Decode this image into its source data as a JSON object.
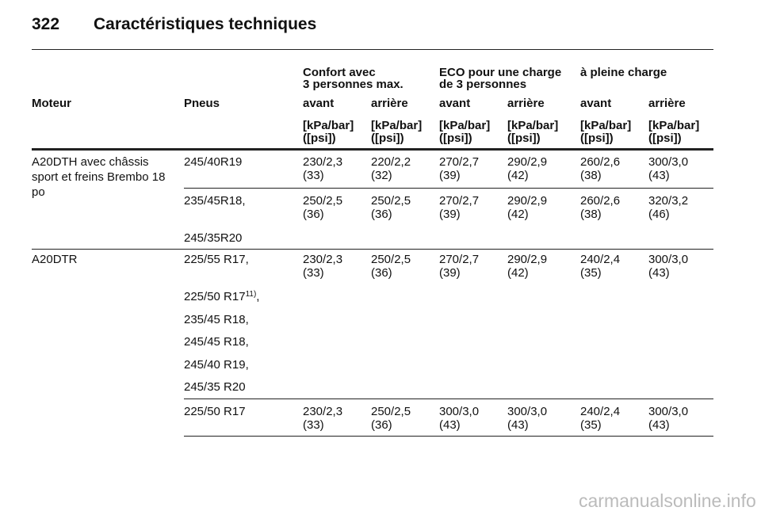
{
  "header": {
    "page_number": "322",
    "title": "Caractéristiques techniques"
  },
  "table": {
    "group_headers": [
      [
        "Confort avec",
        "3 personnes max."
      ],
      [
        "ECO pour une charge",
        "de 3 personnes"
      ],
      [
        "à pleine charge"
      ]
    ],
    "columns": [
      "Moteur",
      "Pneus",
      "avant",
      "arrière",
      "avant",
      "arrière",
      "avant",
      "arrière"
    ],
    "units": [
      [
        "[kPa/bar]",
        "([psi])"
      ],
      [
        "[kPa/bar]",
        "([psi])"
      ],
      [
        "[kPa/bar]",
        "([psi])"
      ],
      [
        "[kPa/bar]",
        "([psi])"
      ],
      [
        "[kPa/bar]",
        "([psi])"
      ],
      [
        "[kPa/bar]",
        "([psi])"
      ]
    ],
    "engines": [
      {
        "name": [
          "A20DTH avec châssis",
          "sport et freins Brembo 18",
          "po"
        ],
        "groups": [
          {
            "tires": [
              {
                "text": "245/40R19"
              }
            ],
            "values": [
              [
                "230/2,3",
                "(33)"
              ],
              [
                "220/2,2",
                "(32)"
              ],
              [
                "270/2,7",
                "(39)"
              ],
              [
                "290/2,9",
                "(42)"
              ],
              [
                "260/2,6",
                "(38)"
              ],
              [
                "300/3,0",
                "(43)"
              ]
            ]
          },
          {
            "tires": [
              {
                "text": "235/45R18,"
              },
              {
                "text": "245/35R20"
              }
            ],
            "values": [
              [
                "250/2,5",
                "(36)"
              ],
              [
                "250/2,5",
                "(36)"
              ],
              [
                "270/2,7",
                "(39)"
              ],
              [
                "290/2,9",
                "(42)"
              ],
              [
                "260/2,6",
                "(38)"
              ],
              [
                "320/3,2",
                "(46)"
              ]
            ]
          }
        ]
      },
      {
        "name": [
          "A20DTR"
        ],
        "groups": [
          {
            "tires": [
              {
                "text": "225/55 R17,"
              },
              {
                "text": "225/50 R17",
                "note": "11)",
                "suffix": ","
              },
              {
                "text": "235/45 R18,"
              },
              {
                "text": "245/45 R18,"
              },
              {
                "text": "245/40 R19,"
              },
              {
                "text": "245/35 R20"
              }
            ],
            "values": [
              [
                "230/2,3",
                "(33)"
              ],
              [
                "250/2,5",
                "(36)"
              ],
              [
                "270/2,7",
                "(39)"
              ],
              [
                "290/2,9",
                "(42)"
              ],
              [
                "240/2,4",
                "(35)"
              ],
              [
                "300/3,0",
                "(43)"
              ]
            ]
          },
          {
            "tires": [
              {
                "text": "225/50 R17"
              }
            ],
            "values": [
              [
                "230/2,3",
                "(33)"
              ],
              [
                "250/2,5",
                "(36)"
              ],
              [
                "300/3,0",
                "(43)"
              ],
              [
                "300/3,0",
                "(43)"
              ],
              [
                "240/2,4",
                "(35)"
              ],
              [
                "300/3,0",
                "(43)"
              ]
            ]
          }
        ]
      }
    ]
  },
  "watermark": "carmanualsonline.info"
}
